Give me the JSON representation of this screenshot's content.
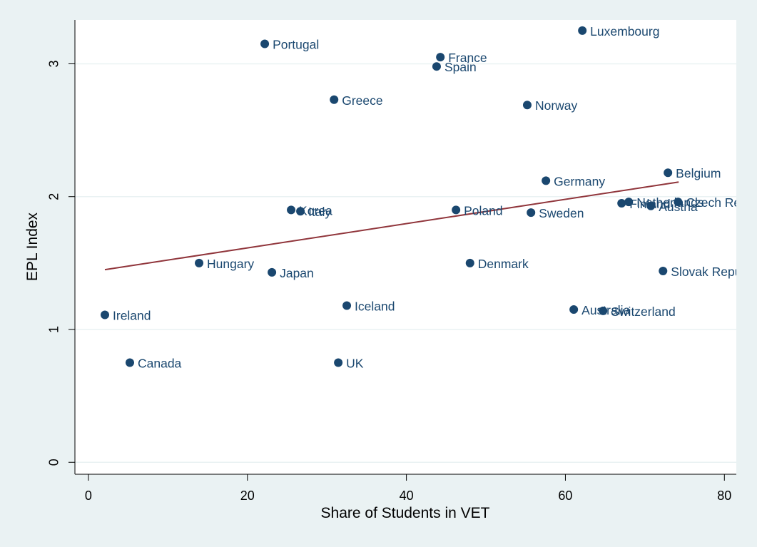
{
  "chart_data": {
    "type": "scatter",
    "x_label": "Share of Students in VET",
    "y_label": "EPL Index",
    "labels": [
      "Portugal",
      "Luxembourg",
      "France",
      "Spain",
      "Greece",
      "Norway",
      "Belgium",
      "Germany",
      "Finland",
      "Netherlands",
      "Czech Republic",
      "Austria",
      "Korea",
      "Italy",
      "Poland",
      "Sweden",
      "Hungary",
      "Denmark",
      "Slovak Republic",
      "Japan",
      "Iceland",
      "Ireland",
      "Australia",
      "Switzerland",
      "Canada",
      "UK"
    ],
    "x": [
      22.18,
      62.13,
      44.27,
      43.8,
      30.9,
      55.2,
      72.9,
      57.55,
      67.07,
      67.97,
      74.17,
      70.75,
      25.5,
      26.67,
      46.24,
      55.67,
      13.92,
      48.0,
      72.28,
      23.08,
      32.5,
      2.07,
      61.05,
      64.74,
      5.21,
      31.43
    ],
    "values": [
      3.15,
      3.25,
      3.05,
      2.98,
      2.73,
      2.69,
      2.18,
      2.12,
      1.95,
      1.96,
      1.96,
      1.93,
      1.9,
      1.89,
      1.9,
      1.88,
      1.5,
      1.5,
      1.44,
      1.43,
      1.18,
      1.11,
      1.15,
      1.14,
      0.75,
      0.75
    ],
    "color": "#1a476f",
    "fit_line": {
      "x": [
        2.07,
        74.25
      ],
      "y": [
        1.45,
        2.11
      ],
      "color": "#90353b"
    },
    "xlim": [
      -1.7,
      81.5
    ],
    "ylim": [
      -0.09,
      3.33
    ],
    "xticks": [
      0,
      20,
      40,
      60,
      80
    ],
    "yticks": [
      0,
      1,
      2,
      3
    ],
    "grid": true
  }
}
